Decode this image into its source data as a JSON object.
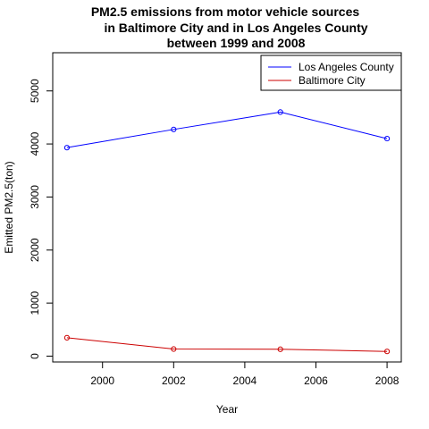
{
  "chart_data": {
    "type": "line",
    "title_lines": [
      "PM2.5 emissions from motor vehicle sources",
      "in Baltimore City and in Los Angeles County",
      "between 1999 and 2008"
    ],
    "xlabel": "Year",
    "ylabel": "Emitted PM2.5(ton)",
    "x": [
      1999,
      2002,
      2005,
      2008
    ],
    "xlim": [
      1998.6,
      2008.4
    ],
    "ylim": [
      -110,
      5720
    ],
    "xticks": [
      2000,
      2002,
      2004,
      2006,
      2008
    ],
    "yticks": [
      0,
      1000,
      2000,
      3000,
      4000,
      5000
    ],
    "grid": false,
    "legend_position": "top-right",
    "series": [
      {
        "name": "Los Angeles County",
        "color": "#0000ff",
        "values": [
          3931,
          4274,
          4601,
          4101
        ]
      },
      {
        "name": "Baltimore City",
        "color": "#cc0000",
        "values": [
          347,
          134,
          130,
          89
        ]
      }
    ]
  }
}
